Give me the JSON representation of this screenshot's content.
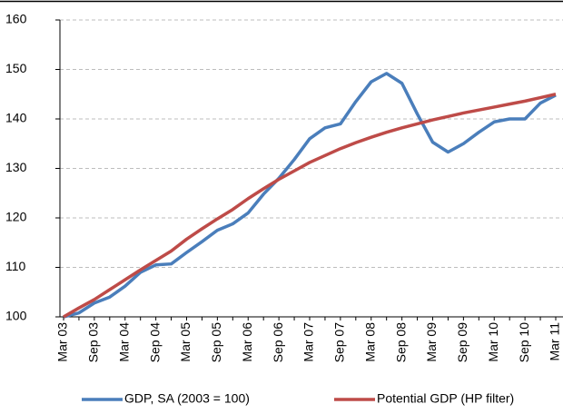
{
  "chart_data": {
    "type": "line",
    "categories": [
      "Mar 03",
      null,
      "Sep 03",
      null,
      "Mar 04",
      null,
      "Sep 04",
      null,
      "Mar 05",
      null,
      "Sep 05",
      null,
      "Mar 06",
      null,
      "Sep 06",
      null,
      "Mar 07",
      null,
      "Sep 07",
      null,
      "Mar 08",
      null,
      "Sep 08",
      null,
      "Mar 09",
      null,
      "Sep 09",
      null,
      "Mar 10",
      null,
      "Sep 10",
      null,
      "Mar 11"
    ],
    "series": [
      {
        "name": "GDP, SA (2003 = 100)",
        "color": "#4a7ebb",
        "values": [
          100,
          100.8,
          102.8,
          104,
          106.2,
          109,
          110.5,
          110.7,
          113,
          115.2,
          117.5,
          118.8,
          121,
          124.8,
          128,
          131.8,
          136,
          138.2,
          139,
          143.5,
          147.5,
          149.2,
          147.2,
          141,
          135.3,
          133.3,
          135,
          137.3,
          139.4,
          140,
          140,
          143.2,
          144.8
        ]
      },
      {
        "name": "Potential GDP (HP filter)",
        "color": "#be4b48",
        "values": [
          100,
          101.8,
          103.5,
          105.5,
          107.5,
          109.5,
          111.4,
          113.3,
          115.7,
          117.8,
          119.8,
          121.7,
          123.9,
          125.9,
          127.8,
          129.5,
          131.2,
          132.6,
          134,
          135.2,
          136.3,
          137.3,
          138.2,
          139,
          139.8,
          140.5,
          141.2,
          141.8,
          142.4,
          143,
          143.6,
          144.3,
          145
        ]
      }
    ],
    "ylim": [
      100,
      160
    ],
    "yticks": [
      100,
      110,
      120,
      130,
      140,
      150,
      160
    ],
    "grid": true,
    "legend": "bottom"
  }
}
